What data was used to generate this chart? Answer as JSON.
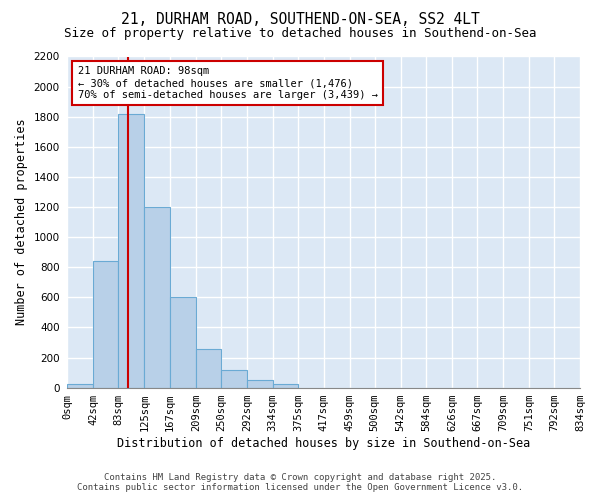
{
  "title1": "21, DURHAM ROAD, SOUTHEND-ON-SEA, SS2 4LT",
  "title2": "Size of property relative to detached houses in Southend-on-Sea",
  "xlabel": "Distribution of detached houses by size in Southend-on-Sea",
  "ylabel": "Number of detached properties",
  "bin_edges": [
    0,
    42,
    83,
    125,
    167,
    209,
    250,
    292,
    334,
    375,
    417,
    459,
    500,
    542,
    584,
    626,
    667,
    709,
    751,
    792,
    834
  ],
  "bar_heights": [
    25,
    840,
    1820,
    1200,
    600,
    255,
    120,
    50,
    25,
    0,
    0,
    0,
    0,
    0,
    0,
    0,
    0,
    0,
    0,
    0
  ],
  "bar_color": "#b8d0e8",
  "bar_edge_color": "#6aaad4",
  "property_size": 98,
  "vline_color": "#cc0000",
  "annotation_line1": "21 DURHAM ROAD: 98sqm",
  "annotation_line2": "← 30% of detached houses are smaller (1,476)",
  "annotation_line3": "70% of semi-detached houses are larger (3,439) →",
  "annotation_box_color": "#cc0000",
  "ylim": [
    0,
    2200
  ],
  "yticks": [
    0,
    200,
    400,
    600,
    800,
    1000,
    1200,
    1400,
    1600,
    1800,
    2000,
    2200
  ],
  "plot_bg_color": "#dce8f5",
  "fig_bg_color": "#ffffff",
  "grid_color": "#ffffff",
  "footer1": "Contains HM Land Registry data © Crown copyright and database right 2025.",
  "footer2": "Contains public sector information licensed under the Open Government Licence v3.0.",
  "title1_fontsize": 10.5,
  "title2_fontsize": 9,
  "tick_fontsize": 7.5,
  "ylabel_fontsize": 8.5,
  "xlabel_fontsize": 8.5,
  "footer_fontsize": 6.5
}
